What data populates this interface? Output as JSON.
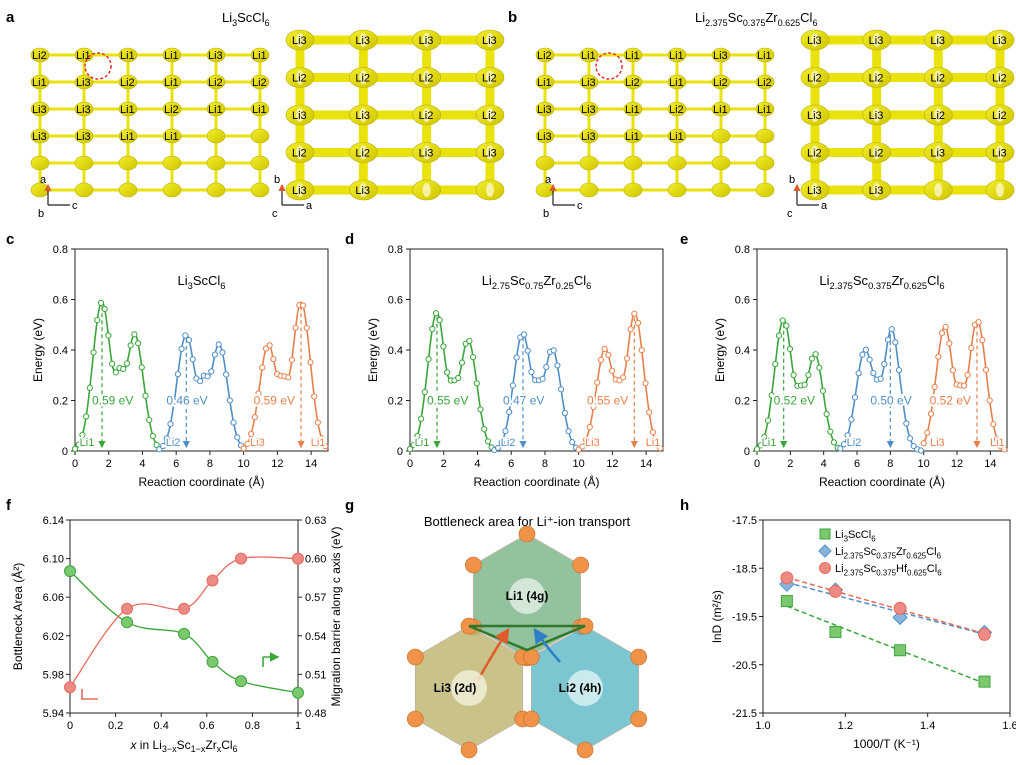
{
  "colors": {
    "green": "#3aa63a",
    "blue": "#4f8fc8",
    "orange": "#e8804a",
    "red_line": "#e86a5a",
    "green_marker": "#7cc86e",
    "blue_marker": "#8ab4dc",
    "red_marker": "#ec8a86",
    "yellow_surface": "#e8e000"
  },
  "panels": {
    "a": {
      "letter": "a",
      "title_main": "Li",
      "title_sub": "3",
      "title_rest": "ScCl",
      "title_sub2": "6",
      "left_labels": [
        "Li2",
        "Li1",
        "Li1",
        "Li1",
        "Li3",
        "Li1",
        "Li1",
        "Li3",
        "Li2",
        "Li1",
        "Li2",
        "Li2",
        "Li3",
        "Li3",
        "Li1",
        "Li2",
        "Li1",
        "Li1",
        "Li3",
        "Li3",
        "Li1",
        "Li1"
      ],
      "right_labels": [
        "Li3",
        "Li3",
        "Li3",
        "Li3",
        "Li2",
        "Li2",
        "Li2",
        "Li2",
        "Li3",
        "Li3",
        "Li2",
        "Li2",
        "Li2",
        "Li2",
        "Li3",
        "Li3",
        "Li3",
        "Li3"
      ],
      "axes_left": [
        "a",
        "b",
        "c"
      ],
      "axes_right": [
        "b",
        "c",
        "a"
      ]
    },
    "b": {
      "letter": "b",
      "title_main": "Li",
      "title_sub": "2.375",
      "title_rest": "Sc",
      "title_sub2": "0.375",
      "title_rest2": "Zr",
      "title_sub3": "0.625",
      "title_rest3": "Cl",
      "title_sub4": "6",
      "axes_left": [
        "a",
        "b",
        "c"
      ],
      "axes_right": [
        "b",
        "c",
        "a"
      ]
    },
    "g": {
      "letter": "g",
      "title": "Bottleneck area for Li⁺-ion transport",
      "sites": [
        "Li1 (4g)",
        "Li3 (2d)",
        "Li2 (4h)"
      ]
    }
  },
  "chart_data": [
    {
      "panel": "c",
      "type": "line",
      "title": "Li3ScCl6",
      "title_parts": [
        "Li",
        "3",
        "ScCl",
        "6"
      ],
      "xlabel": "Reaction coordinate (Å)",
      "ylabel": "Energy (eV)",
      "xlim": [
        0,
        15
      ],
      "ylim": [
        0,
        0.8
      ],
      "xticks": [
        0,
        2,
        4,
        6,
        8,
        10,
        12,
        14
      ],
      "yticks": [
        0,
        0.2,
        0.4,
        0.6,
        0.8
      ],
      "segments": [
        {
          "color": "green",
          "x0": 0,
          "x1": 5,
          "peak1": 0.59,
          "mid": 0.33,
          "peak2": 0.47,
          "peak1x": 1.6,
          "midx": 2.7,
          "peak2x": 3.5
        },
        {
          "color": "blue",
          "x0": 5,
          "x1": 10,
          "peak1": 0.46,
          "mid": 0.3,
          "peak2": 0.43,
          "peak1x": 6.6,
          "midx": 7.7,
          "peak2x": 8.5
        },
        {
          "color": "orange",
          "x0": 10,
          "x1": 15,
          "peak1": 0.43,
          "mid": 0.3,
          "peak2": 0.59,
          "peak1x": 11.5,
          "midx": 12.3,
          "peak2x": 13.4
        }
      ],
      "annotations": [
        {
          "text": "0.59 eV",
          "color": "green",
          "x": 1.6
        },
        {
          "text": "0.46 eV",
          "color": "blue",
          "x": 6.6
        },
        {
          "text": "0.59 eV",
          "color": "orange",
          "x": 13.4
        }
      ],
      "sites": [
        {
          "text": "Li1",
          "color": "green",
          "x": 0.1
        },
        {
          "text": "Li2",
          "color": "blue",
          "x": 5.2
        },
        {
          "text": "Li3",
          "color": "orange",
          "x": 10.2
        },
        {
          "text": "Li1",
          "color": "orange",
          "x": 13.8
        }
      ]
    },
    {
      "panel": "d",
      "type": "line",
      "title_parts": [
        "Li",
        "2.75",
        "Sc",
        "0.75",
        "Zr",
        "0.25",
        "Cl",
        "6"
      ],
      "xlabel": "Reaction coordinate (Å)",
      "ylabel": "Energy (eV)",
      "xlim": [
        0,
        15
      ],
      "ylim": [
        0,
        0.8
      ],
      "xticks": [
        0,
        2,
        4,
        6,
        8,
        10,
        12,
        14
      ],
      "yticks": [
        0,
        0.2,
        0.4,
        0.6,
        0.8
      ],
      "segments": [
        {
          "color": "green",
          "x0": 0,
          "x1": 5,
          "peak1": 0.55,
          "mid": 0.28,
          "peak2": 0.45,
          "peak1x": 1.6,
          "midx": 2.6,
          "peak2x": 3.4
        },
        {
          "color": "blue",
          "x0": 5,
          "x1": 10,
          "peak1": 0.47,
          "mid": 0.28,
          "peak2": 0.41,
          "peak1x": 6.7,
          "midx": 7.6,
          "peak2x": 8.4
        },
        {
          "color": "orange",
          "x0": 10,
          "x1": 15,
          "peak1": 0.41,
          "mid": 0.28,
          "peak2": 0.55,
          "peak1x": 11.6,
          "midx": 12.4,
          "peak2x": 13.3
        }
      ],
      "annotations": [
        {
          "text": "0.55 eV",
          "color": "green",
          "x": 1.6
        },
        {
          "text": "0.47 eV",
          "color": "blue",
          "x": 6.7
        },
        {
          "text": "0.55 eV",
          "color": "orange",
          "x": 13.3
        }
      ],
      "sites": [
        {
          "text": "Li1",
          "color": "green",
          "x": 0.1
        },
        {
          "text": "Li2",
          "color": "blue",
          "x": 5.2
        },
        {
          "text": "Li3",
          "color": "orange",
          "x": 10.2
        },
        {
          "text": "Li1",
          "color": "orange",
          "x": 13.8
        }
      ]
    },
    {
      "panel": "e",
      "type": "line",
      "title_parts": [
        "Li",
        "2.375",
        "Sc",
        "0.375",
        "Zr",
        "0.625",
        "Cl",
        "6"
      ],
      "xlabel": "Reaction coordinate (Å)",
      "ylabel": "Energy (eV)",
      "xlim": [
        0,
        15
      ],
      "ylim": [
        0,
        0.8
      ],
      "xticks": [
        0,
        2,
        4,
        6,
        8,
        10,
        12,
        14
      ],
      "yticks": [
        0,
        0.2,
        0.4,
        0.6,
        0.8
      ],
      "segments": [
        {
          "color": "green",
          "x0": 0,
          "x1": 5,
          "peak1": 0.52,
          "mid": 0.26,
          "peak2": 0.4,
          "peak1x": 1.6,
          "midx": 2.7,
          "peak2x": 3.4
        },
        {
          "color": "blue",
          "x0": 5,
          "x1": 10,
          "peak1": 0.4,
          "mid": 0.28,
          "peak2": 0.5,
          "peak1x": 6.5,
          "midx": 7.3,
          "peak2x": 8.0
        },
        {
          "color": "orange",
          "x0": 10,
          "x1": 15,
          "peak1": 0.5,
          "mid": 0.26,
          "peak2": 0.52,
          "peak1x": 11.3,
          "midx": 12.2,
          "peak2x": 13.2
        }
      ],
      "annotations": [
        {
          "text": "0.52 eV",
          "color": "green",
          "x": 1.6
        },
        {
          "text": "0.50 eV",
          "color": "blue",
          "x": 8.0
        },
        {
          "text": "0.52 eV",
          "color": "orange",
          "x": 13.2
        }
      ],
      "sites": [
        {
          "text": "Li1",
          "color": "green",
          "x": 0.1
        },
        {
          "text": "Li2",
          "color": "blue",
          "x": 5.2
        },
        {
          "text": "Li3",
          "color": "orange",
          "x": 10.2
        },
        {
          "text": "Li1",
          "color": "orange",
          "x": 13.8
        }
      ]
    },
    {
      "panel": "f",
      "type": "line",
      "xlabel_parts": [
        "x",
        " in Li",
        "3−x",
        "Sc",
        "1−x",
        "Zr",
        "x",
        "Cl",
        "6"
      ],
      "ylabel_left": "Bottleneck Area (Å²)",
      "ylabel_right": "Migration barrier along c axis (eV)",
      "xlim": [
        0,
        1
      ],
      "ylim_left": [
        5.94,
        6.14
      ],
      "ylim_right": [
        0.48,
        0.63
      ],
      "xticks": [
        0,
        0.2,
        0.4,
        0.6,
        0.8,
        1
      ],
      "yticks_left": [
        5.94,
        5.98,
        6.02,
        6.06,
        6.1,
        6.14
      ],
      "yticks_right": [
        0.48,
        0.51,
        0.54,
        0.57,
        0.6,
        0.63
      ],
      "series": [
        {
          "name": "Bottleneck Area",
          "axis": "left",
          "color": "green",
          "x": [
            0,
            0.25,
            0.5,
            0.625,
            0.75,
            1
          ],
          "y": [
            6.087,
            6.034,
            6.022,
            5.993,
            5.973,
            5.961
          ]
        },
        {
          "name": "Migration barrier",
          "axis": "right",
          "color": "red",
          "x": [
            0,
            0.25,
            0.5,
            0.625,
            0.75,
            1
          ],
          "y": [
            0.5,
            0.561,
            0.561,
            0.583,
            0.6,
            0.6
          ]
        }
      ]
    },
    {
      "panel": "h",
      "type": "scatter",
      "xlabel": "1000/T (K⁻¹)",
      "ylabel": "lnD (m²/s)",
      "xlim": [
        1.0,
        1.6
      ],
      "ylim": [
        -21.5,
        -17.5
      ],
      "xticks": [
        1.0,
        1.2,
        1.4,
        1.6
      ],
      "yticks": [
        -17.5,
        -18.5,
        -19.5,
        -20.5,
        -21.5
      ],
      "series": [
        {
          "name_parts": [
            "Li",
            "3",
            "ScCl",
            "6"
          ],
          "color": "green",
          "marker": "square",
          "x": [
            1.058,
            1.176,
            1.333,
            1.538
          ],
          "y": [
            -19.18,
            -19.82,
            -20.2,
            -20.85
          ]
        },
        {
          "name_parts": [
            "Li",
            "2.375",
            "Sc",
            "0.375",
            "Zr",
            "0.625",
            "Cl",
            "6"
          ],
          "color": "blue",
          "marker": "diamond",
          "x": [
            1.058,
            1.176,
            1.333,
            1.538
          ],
          "y": [
            -18.83,
            -18.95,
            -19.52,
            -19.83
          ]
        },
        {
          "name_parts": [
            "Li",
            "2.375",
            "Sc",
            "0.375",
            "Hf",
            "0.625",
            "Cl",
            "6"
          ],
          "color": "red",
          "marker": "circle",
          "x": [
            1.058,
            1.176,
            1.333,
            1.538
          ],
          "y": [
            -18.7,
            -18.98,
            -19.33,
            -19.87
          ]
        }
      ]
    }
  ]
}
